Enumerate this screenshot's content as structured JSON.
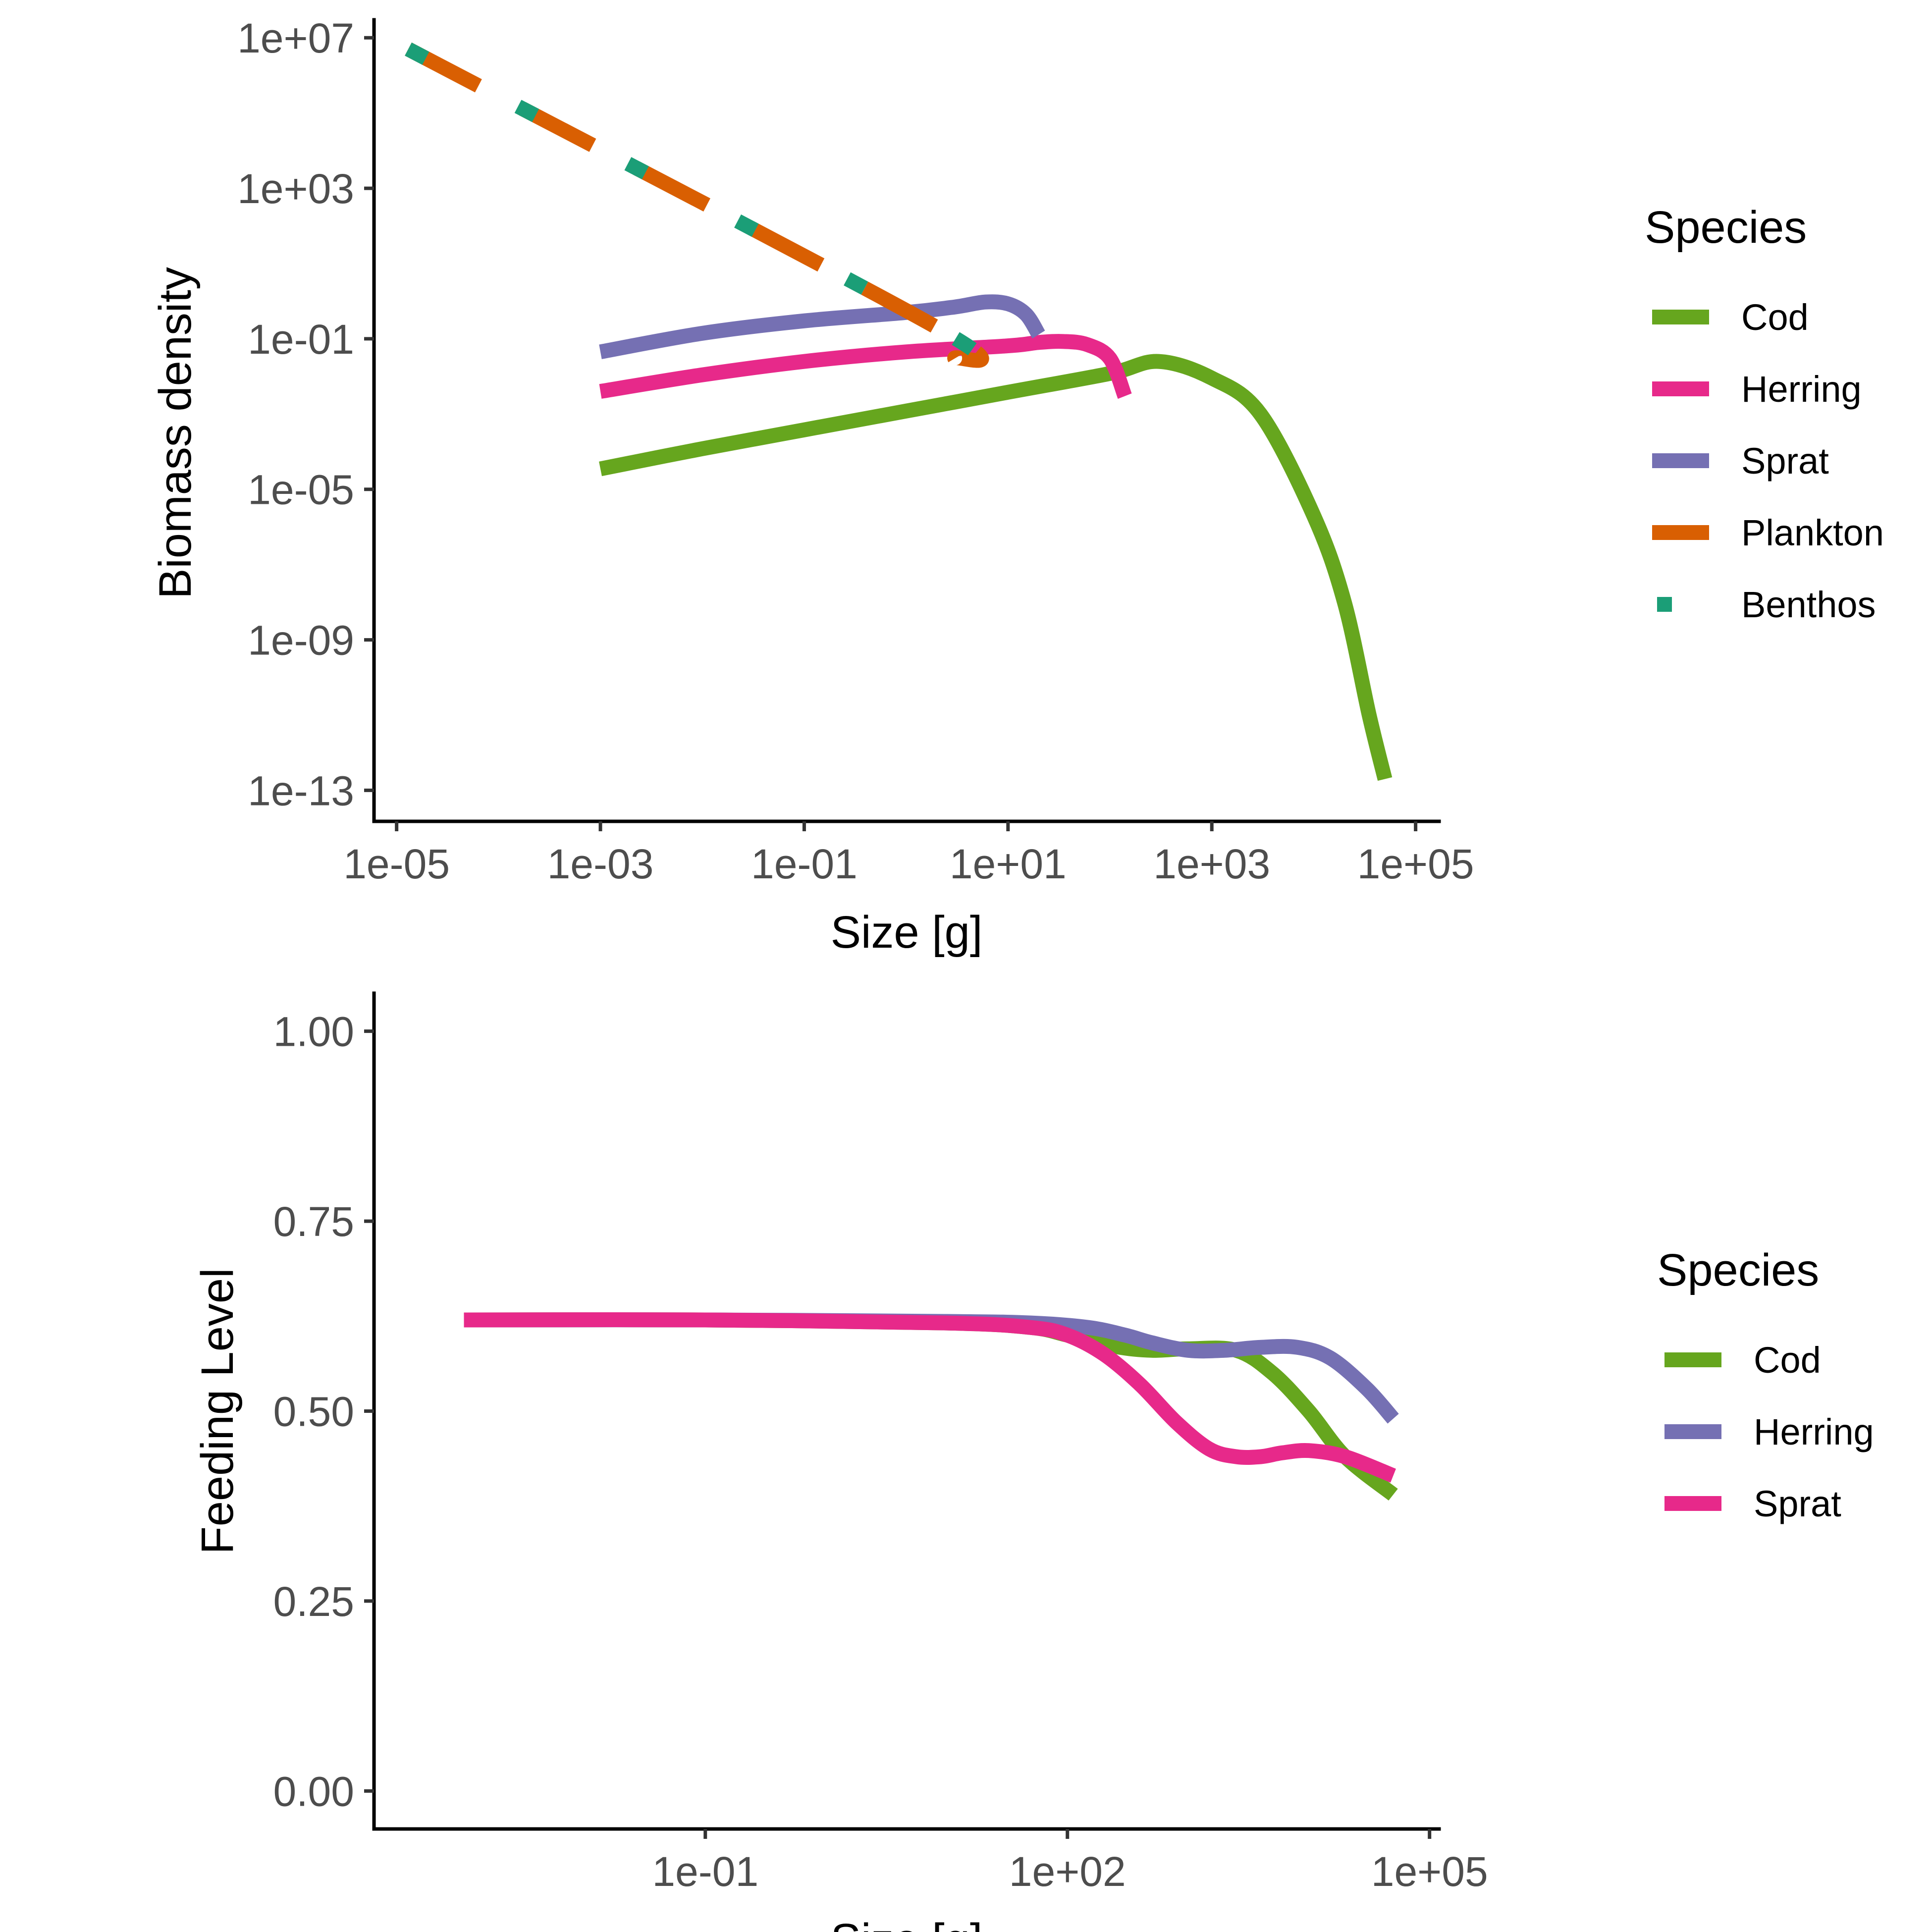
{
  "chart_data": [
    {
      "type": "line",
      "xlabel": "Size [g]",
      "ylabel": "Biomass density",
      "x_scale": "log10",
      "y_scale": "log10",
      "xlim": [
        6e-06,
        170000.0
      ],
      "ylim": [
        1.5e-14,
        30000000.0
      ],
      "x_ticks": [
        1e-05,
        0.001,
        0.1,
        10.0,
        1000.0,
        100000.0
      ],
      "x_tick_labels": [
        "1e-05",
        "1e-03",
        "1e-01",
        "1e+01",
        "1e+03",
        "1e+05"
      ],
      "y_ticks": [
        1e-13,
        1e-09,
        1e-05,
        0.1,
        1000.0,
        10000000.0
      ],
      "y_tick_labels": [
        "1e-13",
        "1e-09",
        "1e-05",
        "1e-01",
        "1e+03",
        "1e+07"
      ],
      "grid": false,
      "legend": {
        "title": "Species",
        "placement": "right",
        "entries": [
          {
            "label": "Cod",
            "color": "#66A61E",
            "style": "solid"
          },
          {
            "label": "Herring",
            "color": "#E7298A",
            "style": "solid"
          },
          {
            "label": "Sprat",
            "color": "#7570B3",
            "style": "solid"
          },
          {
            "label": "Plankton",
            "color": "#D95F02",
            "style": "dashed"
          },
          {
            "label": "Benthos",
            "color": "#1B9E77",
            "style": "dotted"
          }
        ]
      },
      "series": [
        {
          "name": "Cod",
          "color": "#66A61E",
          "x": [
            0.001,
            0.01,
            0.1,
            1,
            10,
            100,
            300,
            1000,
            3000,
            10000,
            20000,
            35000,
            50000
          ],
          "y": [
            3.5e-05,
            0.00012,
            0.00038,
            0.0012,
            0.0038,
            0.012,
            0.025,
            0.009,
            0.001,
            2e-06,
            1e-08,
            1e-11,
            2e-13
          ]
        },
        {
          "name": "Herring",
          "color": "#E7298A",
          "x": [
            0.001,
            0.01,
            0.1,
            1,
            10,
            20,
            35,
            60,
            100,
            140
          ],
          "y": [
            0.004,
            0.011,
            0.025,
            0.045,
            0.065,
            0.08,
            0.085,
            0.07,
            0.03,
            0.003
          ]
        },
        {
          "name": "Sprat",
          "color": "#7570B3",
          "x": [
            0.001,
            0.01,
            0.1,
            1,
            3,
            6,
            10,
            15,
            20
          ],
          "y": [
            0.045,
            0.14,
            0.3,
            0.5,
            0.7,
            0.95,
            0.85,
            0.45,
            0.13
          ]
        },
        {
          "name": "Plankton",
          "color": "#D95F02",
          "x": [
            1.3e-05,
            2,
            3
          ],
          "y": [
            5000000.0,
            0.2,
            0.03
          ]
        },
        {
          "name": "Benthos",
          "color": "#1B9E77",
          "x": [
            1.3e-05,
            2,
            3
          ],
          "y": [
            5000000.0,
            0.2,
            0.03
          ]
        }
      ]
    },
    {
      "type": "line",
      "xlabel": "Size [g]",
      "ylabel": "Feeding Level",
      "x_scale": "log10",
      "y_scale": "linear",
      "xlim": [
        0.00018,
        120000.0
      ],
      "ylim": [
        -0.05,
        1.05
      ],
      "x_ticks": [
        0.1,
        100,
        100000
      ],
      "x_tick_labels": [
        "1e-01",
        "1e+02",
        "1e+05"
      ],
      "y_ticks": [
        0,
        0.25,
        0.5,
        0.75,
        1
      ],
      "y_tick_labels": [
        "0.00",
        "0.25",
        "0.50",
        "0.75",
        "1.00"
      ],
      "grid": false,
      "legend": {
        "title": "Species",
        "placement": "right",
        "entries": [
          {
            "label": "Cod",
            "color": "#66A61E",
            "style": "solid"
          },
          {
            "label": "Herring",
            "color": "#7570B3",
            "style": "solid"
          },
          {
            "label": "Sprat",
            "color": "#E7298A",
            "style": "solid"
          }
        ]
      },
      "series": [
        {
          "name": "Cod",
          "color": "#66A61E",
          "x": [
            0.001,
            0.1,
            10,
            50,
            100,
            250,
            500,
            1000,
            2500,
            5000,
            10000,
            20000,
            50000
          ],
          "y": [
            0.62,
            0.62,
            0.616,
            0.61,
            0.6,
            0.585,
            0.58,
            0.582,
            0.58,
            0.55,
            0.5,
            0.44,
            0.39
          ]
        },
        {
          "name": "Herring",
          "color": "#7570B3",
          "x": [
            0.001,
            0.1,
            10,
            50,
            150,
            300,
            500,
            1000,
            2000,
            4000,
            8000,
            15000,
            30000,
            50000
          ],
          "y": [
            0.62,
            0.62,
            0.618,
            0.616,
            0.61,
            0.6,
            0.59,
            0.58,
            0.58,
            0.584,
            0.584,
            0.57,
            0.53,
            0.49
          ]
        },
        {
          "name": "Sprat",
          "color": "#E7298A",
          "x": [
            0.001,
            0.1,
            10,
            50,
            100,
            200,
            400,
            800,
            1500,
            2500,
            4000,
            6000,
            10000,
            20000,
            50000
          ],
          "y": [
            0.62,
            0.62,
            0.616,
            0.61,
            0.6,
            0.575,
            0.535,
            0.485,
            0.45,
            0.44,
            0.44,
            0.445,
            0.448,
            0.44,
            0.415
          ]
        }
      ]
    }
  ]
}
